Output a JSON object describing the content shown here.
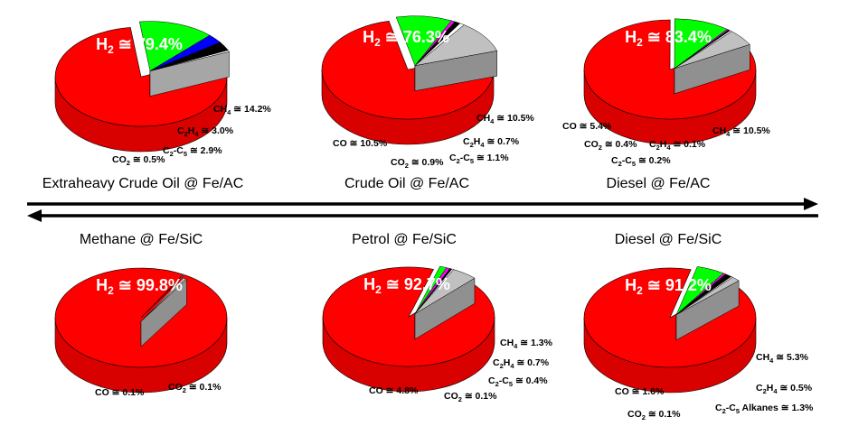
{
  "colors": {
    "H2": "#ff0000",
    "CO": "#c0c0c0",
    "CO2": "#ffffff",
    "C2C5": "#000000",
    "C2H4": "#ff00ff",
    "CH4_green": "#00ff00",
    "CH4_blue": "#0000ff",
    "arrow": "#000000"
  },
  "chart_data": [
    {
      "type": "pie",
      "title": "Extraheavy Crude Oil @ Fe/AC",
      "headline": {
        "species": "H2",
        "text": "79.4%"
      },
      "slices": [
        {
          "species": "H2",
          "value": 79.4
        },
        {
          "species": "CH4",
          "value": 14.2,
          "label": "≅ 14.2%"
        },
        {
          "species": "C2H4",
          "value": 3.0,
          "label": "≅ 3.0%"
        },
        {
          "species": "C2-C5",
          "value": 2.9,
          "label": "≅ 2.9%"
        },
        {
          "species": "CO2",
          "value": 0.5,
          "label": "≅ 0.5%"
        }
      ]
    },
    {
      "type": "pie",
      "title": "Crude Oil @ Fe/AC",
      "headline": {
        "species": "H2",
        "text": "76.3%"
      },
      "slices": [
        {
          "species": "H2",
          "value": 76.3
        },
        {
          "species": "CH4",
          "value": 10.5,
          "label": "≅ 10.5%"
        },
        {
          "species": "C2H4",
          "value": 0.7,
          "label": "≅ 0.7%"
        },
        {
          "species": "C2-C5",
          "value": 1.1,
          "label": "≅ 1.1%"
        },
        {
          "species": "CO2",
          "value": 0.9,
          "label": "≅ 0.9%"
        },
        {
          "species": "CO",
          "value": 10.5,
          "label": "≅ 10.5%"
        }
      ]
    },
    {
      "type": "pie",
      "title": "Diesel @ Fe/AC",
      "headline": {
        "species": "H2",
        "text": "83.4%"
      },
      "slices": [
        {
          "species": "H2",
          "value": 83.4
        },
        {
          "species": "CH4",
          "value": 10.5,
          "label": "≅ 10.5%"
        },
        {
          "species": "C2H4",
          "value": 0.1,
          "label": "≅ 0.1%"
        },
        {
          "species": "C2-C5",
          "value": 0.2,
          "label": "≅ 0.2%"
        },
        {
          "species": "CO2",
          "value": 0.4,
          "label": "≅ 0.4%"
        },
        {
          "species": "CO",
          "value": 5.4,
          "label": "≅ 5.4%"
        }
      ]
    },
    {
      "type": "pie",
      "title": "Methane @ Fe/SiC",
      "headline": {
        "species": "H2",
        "text": "99.8%"
      },
      "slices": [
        {
          "species": "H2",
          "value": 99.8
        },
        {
          "species": "CO2",
          "value": 0.1,
          "label": "≅ 0.1%"
        },
        {
          "species": "CO",
          "value": 0.1,
          "label": "≅ 0.1%"
        }
      ]
    },
    {
      "type": "pie",
      "title": "Petrol @ Fe/SiC",
      "headline": {
        "species": "H2",
        "text": "92.7%"
      },
      "slices": [
        {
          "species": "H2",
          "value": 92.7
        },
        {
          "species": "CH4",
          "value": 1.3,
          "label": "≅ 1.3%"
        },
        {
          "species": "C2H4",
          "value": 0.7,
          "label": "≅ 0.7%"
        },
        {
          "species": "C2-C5",
          "value": 0.4,
          "label": "≅ 0.4%"
        },
        {
          "species": "CO2",
          "value": 0.1,
          "label": "≅ 0.1%"
        },
        {
          "species": "CO",
          "value": 4.8,
          "label": "≅ 4.8%"
        }
      ]
    },
    {
      "type": "pie",
      "title": "Diesel @ Fe/SiC",
      "headline": {
        "species": "H2",
        "text": "91.2%"
      },
      "slices": [
        {
          "species": "H2",
          "value": 91.2
        },
        {
          "species": "CH4",
          "value": 5.3,
          "label": "≅ 5.3%"
        },
        {
          "species": "C2H4",
          "value": 0.5,
          "label": "≅ 0.5%"
        },
        {
          "species": "C2-C5",
          "value": 1.3,
          "label": "Alkanes ≅ 1.3%"
        },
        {
          "species": "CO2",
          "value": 0.1,
          "label": "≅ 0.1%"
        },
        {
          "species": "CO",
          "value": 1.6,
          "label": "≅ 1.6%"
        }
      ]
    }
  ]
}
